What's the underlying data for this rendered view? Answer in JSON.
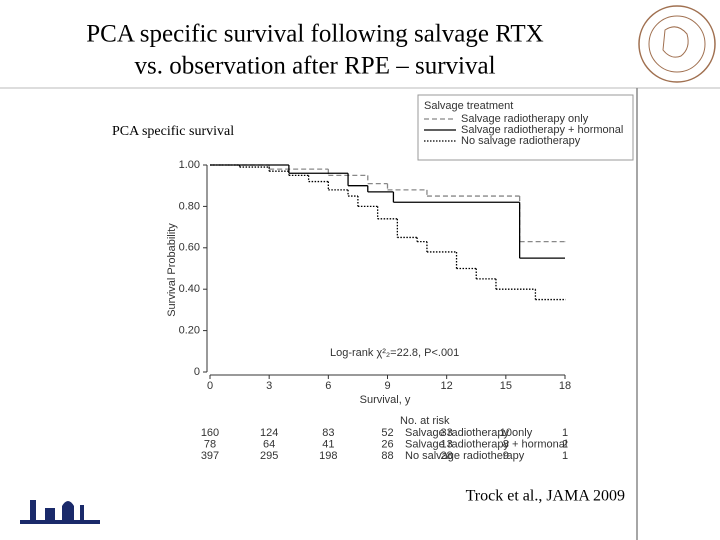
{
  "chart_data": {
    "type": "step",
    "title_lines": [
      "PCA specific survival following salvage RTX",
      "vs. observation after RPE – survival"
    ],
    "subtitle": "PCA specific survival",
    "legend_title": "Salvage treatment",
    "x_label": "Survival, y",
    "y_label": "Survival Probability",
    "annotation": "Log-rank χ²₂=22.8, P<.001",
    "source": "Trock et al., JAMA 2009",
    "xlim": [
      0,
      18
    ],
    "xticks": [
      0,
      3,
      6,
      9,
      12,
      15,
      18
    ],
    "ylim": [
      0,
      1
    ],
    "yticks": [
      0,
      {
        "value": 0.2,
        "label": "0.20"
      },
      {
        "value": 0.4,
        "label": "0.40"
      },
      {
        "value": 0.6,
        "label": "0.60"
      },
      {
        "value": 0.8,
        "label": "0.80"
      },
      {
        "value": 1,
        "label": "1.00"
      }
    ],
    "series": [
      {
        "name": "Salvage radiotherapy only",
        "color": "#888888",
        "line_style": "dashed",
        "x": [
          0,
          3,
          6,
          8,
          9,
          11,
          15.7,
          18
        ],
        "values": [
          1,
          0.98,
          0.95,
          0.91,
          0.88,
          0.85,
          0.63,
          0.63
        ]
      },
      {
        "name": "Salvage radiotherapy + hormonal",
        "color": "#000000",
        "line_style": "solid",
        "x": [
          0,
          4,
          7,
          8,
          9.3,
          15.7,
          18
        ],
        "values": [
          1,
          0.96,
          0.9,
          0.87,
          0.82,
          0.55,
          0.55
        ]
      },
      {
        "name": "No salvage radiotherapy",
        "color": "#000000",
        "line_style": "dotted",
        "x": [
          0,
          1.5,
          3,
          4,
          5,
          6,
          7,
          7.5,
          8.5,
          9.5,
          10.5,
          11,
          12.5,
          13.5,
          14.5,
          16.5,
          18
        ],
        "values": [
          1,
          0.99,
          0.97,
          0.95,
          0.92,
          0.88,
          0.85,
          0.8,
          0.74,
          0.65,
          0.63,
          0.58,
          0.5,
          0.45,
          0.4,
          0.35,
          0.35
        ]
      }
    ],
    "risk_table": {
      "title": "No. at risk",
      "rows": [
        {
          "name": "Salvage radiotherapy only",
          "counts": [
            "160",
            "124",
            "83",
            "52",
            "33",
            "10",
            "1"
          ]
        },
        {
          "name": "Salvage radiotherapy + hormonal",
          "counts": [
            "78",
            "64",
            "41",
            "26",
            "13",
            "8",
            "2"
          ]
        },
        {
          "name": "No salvage radiotherapy",
          "counts": [
            "397",
            "295",
            "198",
            "88",
            "28",
            "9",
            "1"
          ]
        }
      ]
    }
  }
}
